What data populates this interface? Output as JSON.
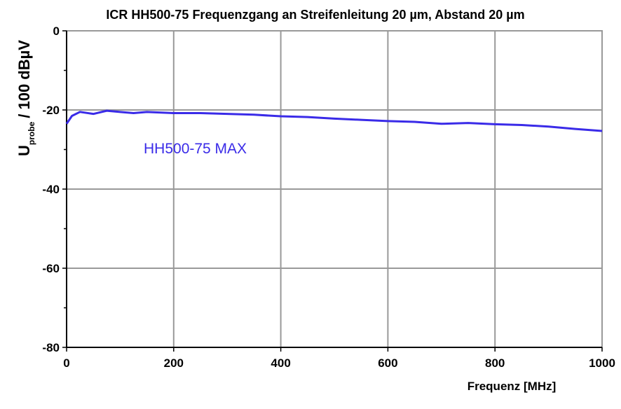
{
  "chart_data": {
    "type": "line",
    "title": "ICR HH500-75 Frequenzgang an Streifenleitung 20 µm, Abstand 20 µm",
    "x_label": "Frequenz [MHz]",
    "y_label": [
      "U",
      "probe",
      "/ 100 dBµV"
    ],
    "x": [
      0,
      10,
      25,
      50,
      75,
      100,
      125,
      150,
      200,
      250,
      300,
      350,
      400,
      450,
      500,
      550,
      600,
      650,
      700,
      750,
      800,
      850,
      900,
      950,
      1000
    ],
    "series": [
      {
        "name": "HH500-75 MAX",
        "color": "#3a2be8",
        "values": [
          -23.5,
          -21.5,
          -20.5,
          -21,
          -20.2,
          -20.5,
          -20.8,
          -20.5,
          -20.8,
          -20.8,
          -21,
          -21.2,
          -21.6,
          -21.8,
          -22.2,
          -22.5,
          -22.8,
          -23,
          -23.5,
          -23.3,
          -23.6,
          -23.8,
          -24.2,
          -24.8,
          -25.3
        ]
      }
    ],
    "xlim": [
      0,
      1000
    ],
    "xticks": [
      0,
      200,
      400,
      600,
      800,
      1000
    ],
    "ylim": [
      -80,
      0
    ],
    "yticks": [
      0,
      -20,
      -40,
      -60,
      -80
    ],
    "grid": true
  }
}
